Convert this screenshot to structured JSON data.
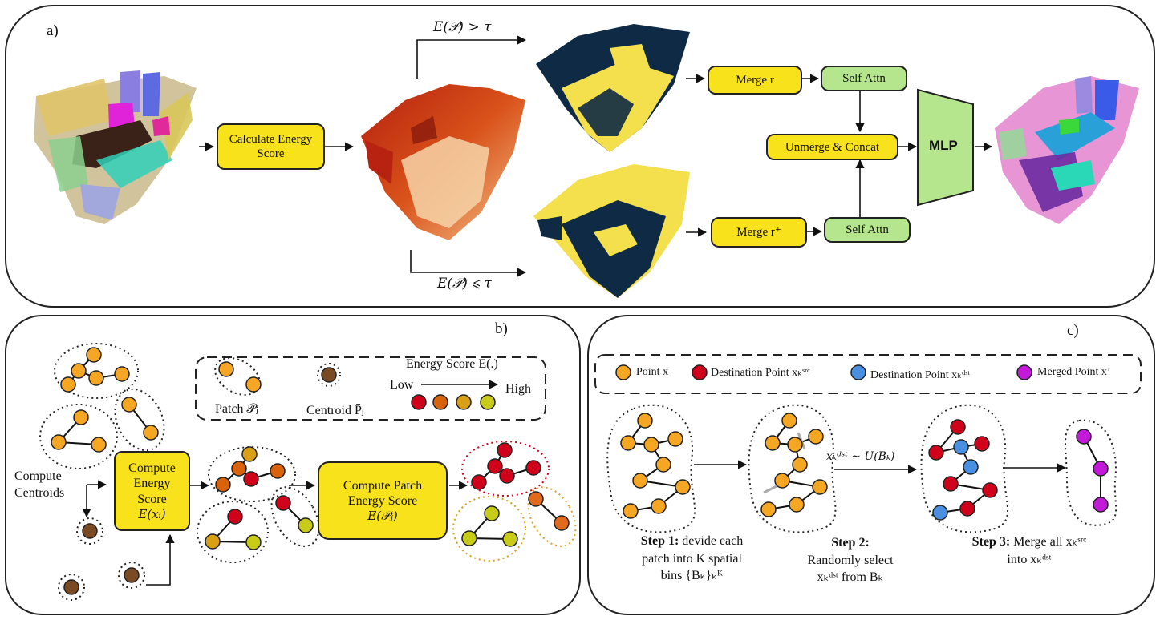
{
  "panel_a": {
    "tag": "a)",
    "calc_box": "Calculate Energy Score",
    "cond_high": "E(𝒫) > τ",
    "cond_low": "E(𝒫) ⩽ τ",
    "merge_r": "Merge r",
    "merge_r_plus": "Merge r⁺",
    "self_attn_1": "Self Attn",
    "self_attn_2": "Self Attn",
    "unmerge": "Unmerge & Concat",
    "mlp": "MLP"
  },
  "panel_b": {
    "tag": "b)",
    "legend_patch": "Patch 𝒫ⱼ",
    "legend_centroid": "Centroid P̄ⱼ",
    "legend_energy": "Energy Score E(.)",
    "legend_low": "Low",
    "legend_high": "High",
    "compute_centroids_1": "Compute",
    "compute_centroids_2": "Centroids",
    "compute_energy_1": "Compute",
    "compute_energy_2": "Energy",
    "compute_energy_3": "Score",
    "compute_energy_4": "E(xᵢ)",
    "compute_patch_1": "Compute Patch",
    "compute_patch_2": "Energy  Score",
    "compute_patch_3": "E(𝒫ⱼ)"
  },
  "panel_c": {
    "tag": "c)",
    "legend_point": "Point x",
    "legend_dest_src": "Destination Point xₖˢʳᶜ",
    "legend_dest_dst": "Destination Point xₖᵈˢᵗ",
    "legend_merged": "Merged Point x’",
    "sample_label": "xₖᵈˢᵗ ∼ U(Bₖ)",
    "step1_title": "Step 1:",
    "step1_line1": " devide each",
    "step1_line2": "patch into K spatial",
    "step1_line3": "bins {Bₖ}ₖᴷ",
    "step2_title": "Step 2:",
    "step2_line1": "Randomly select",
    "step2_line2": "xₖᵈˢᵗ from  Bₖ",
    "step3_title": "Step 3:",
    "step3_line1": " Merge all xₖˢʳᶜ",
    "step3_line2": "into xₖᵈˢᵗ"
  },
  "colors": {
    "yellow_box": "#f8e21c",
    "green_box": "#b5e68e",
    "point_orange": "#f5a623",
    "point_red": "#d0021b",
    "point_blue": "#4a90e2",
    "point_purple": "#c21ad8",
    "energy_1": "#d0021b",
    "energy_2": "#d9620c",
    "energy_3": "#d9a016",
    "energy_4": "#c8cc19",
    "centroid_brown": "#7a4a25",
    "navy": "#0f2a44",
    "yellow_cloud": "#f4e04d"
  }
}
